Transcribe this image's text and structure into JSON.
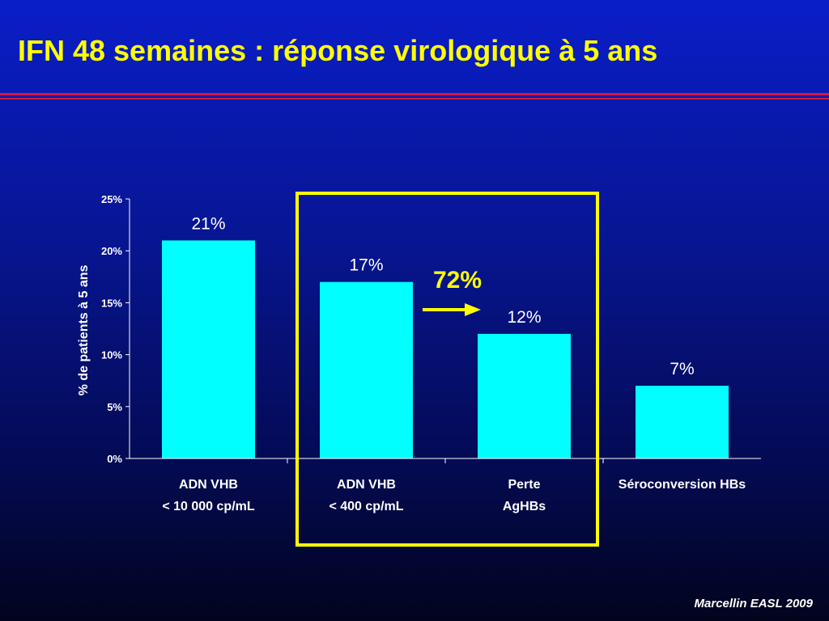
{
  "slide": {
    "title": "IFN 48 semaines : réponse virologique à 5 ans",
    "source": "Marcellin EASL 2009"
  },
  "colors": {
    "bar": "#00ffff",
    "highlight": "#ffff00",
    "text": "#ffffff",
    "axis": "#ffffff"
  },
  "chart_data": {
    "type": "bar",
    "title": "",
    "ylabel": "% de patients à 5 ans",
    "xlabel": "",
    "ylim": [
      0,
      25
    ],
    "yticks": [
      0,
      5,
      10,
      15,
      20,
      25
    ],
    "ytick_labels": [
      "0%",
      "5%",
      "10%",
      "15%",
      "20%",
      "25%"
    ],
    "categories": [
      [
        "ADN VHB",
        "< 10 000 cp/mL"
      ],
      [
        "ADN VHB",
        "< 400 cp/mL"
      ],
      [
        "Perte",
        "AgHBs"
      ],
      [
        "Séroconversion HBs"
      ]
    ],
    "values": [
      21,
      17,
      12,
      7
    ],
    "data_labels": [
      "21%",
      "17%",
      "12%",
      "7%"
    ],
    "annotation": {
      "text": "72%",
      "arrow": "from bar 2 to bar 3",
      "highlighted_categories": [
        1,
        2
      ]
    }
  }
}
